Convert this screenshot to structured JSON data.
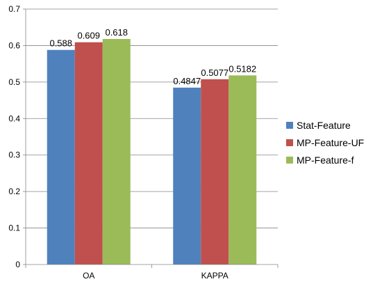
{
  "chart_data": {
    "type": "bar",
    "title": "",
    "xlabel": "",
    "ylabel": "",
    "categories": [
      "OA",
      "KAPPA"
    ],
    "series": [
      {
        "name": "Stat-Feature",
        "color": "#4F81BD",
        "values": [
          0.588,
          0.4847
        ],
        "labels": [
          "0.588",
          "0.4847"
        ]
      },
      {
        "name": "MP-Feature-UF",
        "color": "#C0504D",
        "values": [
          0.609,
          0.5077
        ],
        "labels": [
          "0.609",
          "0.5077"
        ]
      },
      {
        "name": "MP-Feature-f",
        "color": "#9BBB59",
        "values": [
          0.618,
          0.5182
        ],
        "labels": [
          "0.618",
          "0.5182"
        ]
      }
    ],
    "ylim": [
      0,
      0.7
    ],
    "yticks": [
      "0",
      "0.1",
      "0.2",
      "0.3",
      "0.4",
      "0.5",
      "0.6",
      "0.7"
    ],
    "grid": true,
    "legend_position": "right"
  }
}
